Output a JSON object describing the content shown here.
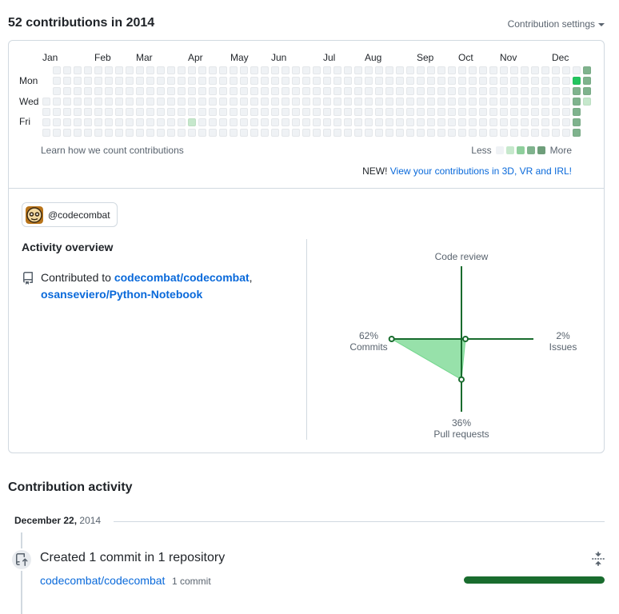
{
  "header": {
    "title": "52 contributions in 2014",
    "settings_label": "Contribution settings"
  },
  "graph": {
    "months": [
      "Jan",
      "Feb",
      "Mar",
      "Apr",
      "May",
      "Jun",
      "Jul",
      "Aug",
      "Sep",
      "Oct",
      "Nov",
      "Dec"
    ],
    "weekday_labels": [
      "Mon",
      "Wed",
      "Fri"
    ],
    "weeks": 53,
    "first_week_start_day": 3,
    "last_week_days": 4,
    "levels": [
      "#eff2f5",
      "#aceebb",
      "#4ac26b",
      "#2da44e",
      "#116329"
    ],
    "cell_colors": [
      "#eff2f5",
      "#c6e8cc",
      "#8ecf9c",
      "#22c55e",
      "#7fb38d"
    ],
    "active_cells": [
      {
        "week": 14,
        "day": 5,
        "level": 1
      },
      {
        "week": 51,
        "day": 1,
        "level": 3
      },
      {
        "week": 51,
        "day": 2,
        "level": 4
      },
      {
        "week": 51,
        "day": 3,
        "level": 4
      },
      {
        "week": 51,
        "day": 4,
        "level": 4
      },
      {
        "week": 51,
        "day": 5,
        "level": 4
      },
      {
        "week": 51,
        "day": 6,
        "level": 4
      },
      {
        "week": 52,
        "day": 0,
        "level": 4
      },
      {
        "week": 52,
        "day": 1,
        "level": 4
      },
      {
        "week": 52,
        "day": 2,
        "level": 4
      },
      {
        "week": 52,
        "day": 3,
        "level": 1
      }
    ],
    "learn_link": "Learn how we count contributions",
    "legend_less": "Less",
    "legend_more": "More",
    "legend_colors": [
      "#eff2f5",
      "#c6e8cc",
      "#8ecf9c",
      "#7fb38d",
      "#6e9e7a"
    ],
    "promo_prefix": "NEW!",
    "promo_link": "View your contributions in 3D, VR and IRL!"
  },
  "org_filter": {
    "label": "@codecombat"
  },
  "overview": {
    "title": "Activity overview",
    "contributed_prefix": "Contributed to",
    "repos": [
      "codecombat/codecombat",
      "osanseviero/Python-Notebook"
    ],
    "separator": ","
  },
  "radar": {
    "axis_top": "Code review",
    "commits_pct": "62%",
    "commits_label": "Commits",
    "issues_pct": "2%",
    "issues_label": "Issues",
    "pulls_pct": "36%",
    "pulls_label": "Pull requests",
    "values": {
      "code_review": 0,
      "commits": 62,
      "issues": 2,
      "pull_requests": 36
    },
    "stroke_color": "#196c2e",
    "fill_color": "#74d78e"
  },
  "activity": {
    "title": "Contribution activity",
    "date_label": "December 22,",
    "date_year": "2014",
    "event_title": "Created 1 commit in 1 repository",
    "event_repo": "codecombat/codecombat",
    "event_count": "1 commit",
    "commit_share": 1.0
  }
}
